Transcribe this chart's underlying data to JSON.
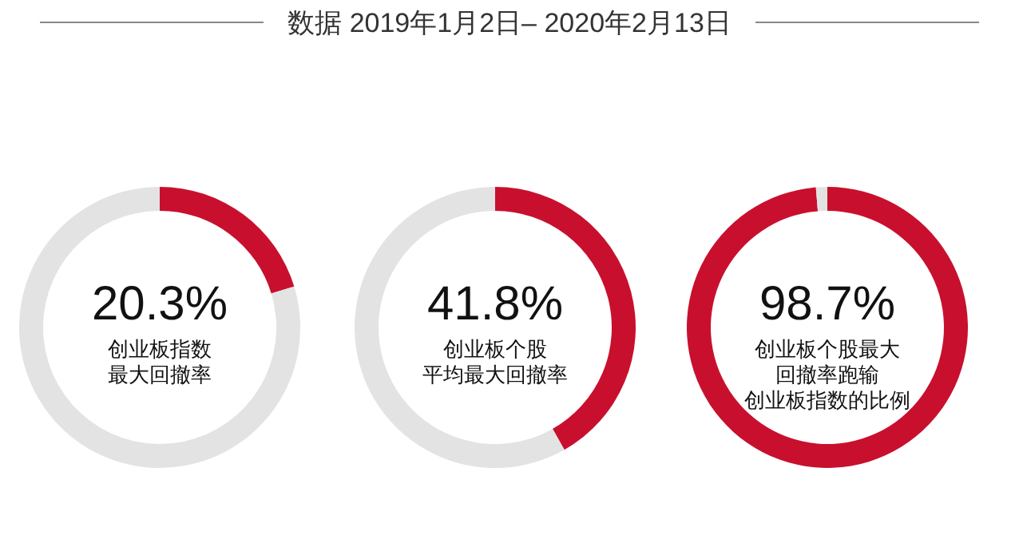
{
  "chart_data": [
    {
      "type": "other",
      "title": "数据 2019年1月2日– 2020年2月13日"
    },
    {
      "type": "donut",
      "categories": [
        null,
        null
      ],
      "values": [
        20.3,
        79.7
      ],
      "colors": [
        "#c8102e",
        "#e3e3e3"
      ],
      "annotations": [
        "20.3%",
        "创业板指数",
        "最大回撤率"
      ]
    },
    {
      "type": "donut",
      "categories": [
        null,
        null
      ],
      "values": [
        41.8,
        58.2
      ],
      "colors": [
        "#c8102e",
        "#e3e3e3"
      ],
      "annotations": [
        "41.8%",
        "创业板个股",
        "平均最大回撤率"
      ]
    },
    {
      "type": "donut",
      "categories": [
        null,
        null
      ],
      "values": [
        98.7,
        1.3
      ],
      "colors": [
        "#c8102e",
        "#e3e3e3"
      ],
      "annotations": [
        "98.7%",
        "创业板个股最大",
        "回撤率跑输",
        "创业板指数的比例"
      ]
    }
  ]
}
